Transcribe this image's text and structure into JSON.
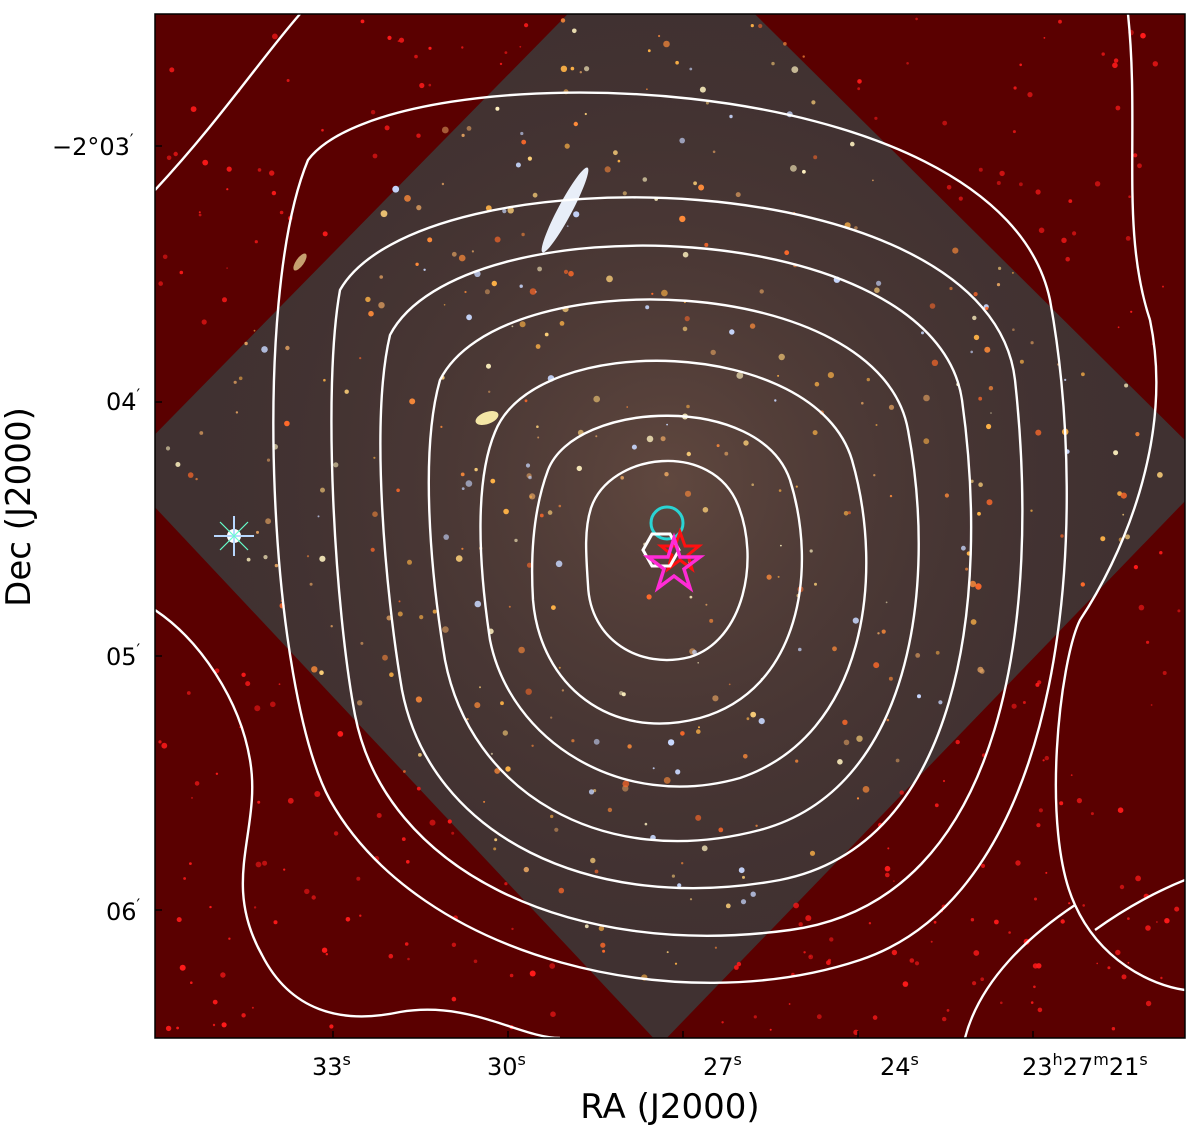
{
  "figure": {
    "xlabel": "RA (J2000)",
    "ylabel": "Dec (J2000)",
    "xticks": [
      {
        "main": "33",
        "sup": "s"
      },
      {
        "main": "30",
        "sup": "s"
      },
      {
        "main": "27",
        "sup": "s"
      },
      {
        "main": "24",
        "sup": "s"
      },
      {
        "main": "23",
        "sup": "h",
        "main2": "27",
        "sup2": "m",
        "main3": "21",
        "sup3": "s"
      }
    ],
    "yticks": [
      {
        "main": "−2°03",
        "sup": "′"
      },
      {
        "main": "04",
        "sup": "′"
      },
      {
        "main": "05",
        "sup": "′"
      },
      {
        "main": "06",
        "sup": "′"
      }
    ]
  },
  "colors": {
    "background_red": "#5a0000",
    "hst_field": "#4a3a3a",
    "contour": "#ffffff",
    "circle_marker": "#2ad4d4",
    "hexagon_marker": "#ffffff",
    "star_marker_magenta": "#ff2bd6",
    "star_marker_red": "#ff1010"
  },
  "markers": [
    {
      "shape": "circle",
      "label": "cyan-circle"
    },
    {
      "shape": "hexagon",
      "label": "white-hexagon"
    },
    {
      "shape": "star",
      "label": "red-star"
    },
    {
      "shape": "star",
      "label": "magenta-star"
    }
  ]
}
